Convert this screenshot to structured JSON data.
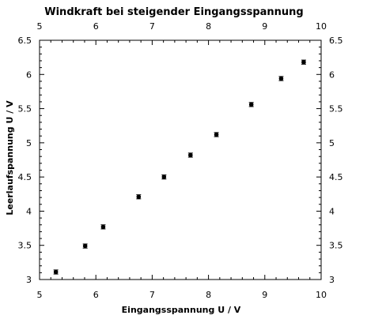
{
  "chart_data": {
    "type": "scatter",
    "title": "Windkraft bei steigender Eingangsspannung",
    "xlabel": "Eingangsspannung U / V",
    "ylabel": "Leerlaufspannung U / V",
    "xlim": [
      5,
      10
    ],
    "ylim": [
      3,
      6.5
    ],
    "x_ticks": [
      5,
      6,
      7,
      8,
      9,
      10
    ],
    "x_tick_labels": [
      "5",
      "6",
      "7",
      "8",
      "9",
      "10"
    ],
    "y_ticks": [
      3,
      3.5,
      4,
      4.5,
      5,
      5.5,
      6,
      6.5
    ],
    "y_tick_labels": [
      "3",
      "3.5",
      "4",
      "4.5",
      "5",
      "5.5",
      "6",
      "6.5"
    ],
    "grid": false,
    "marker_color": "#000000",
    "series": [
      {
        "x": [
          5.29,
          5.81,
          6.13,
          6.76,
          7.21,
          7.68,
          8.14,
          8.76,
          9.29,
          9.69
        ],
        "y": [
          3.11,
          3.49,
          3.77,
          4.21,
          4.5,
          4.82,
          5.12,
          5.56,
          5.94,
          6.18
        ],
        "yerr": [
          0.03,
          0.03,
          0.03,
          0.03,
          0.03,
          0.03,
          0.03,
          0.03,
          0.03,
          0.03
        ]
      }
    ]
  }
}
